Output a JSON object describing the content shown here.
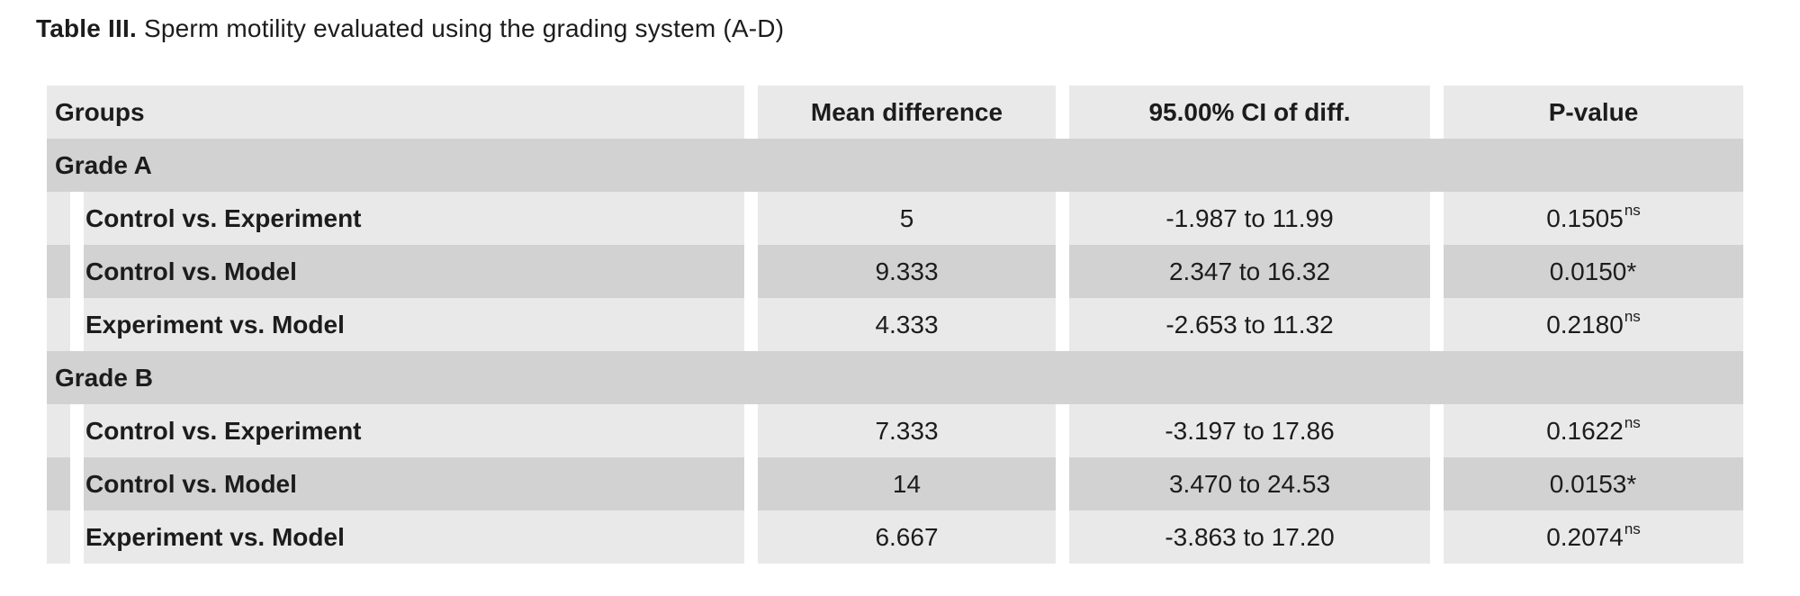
{
  "caption": {
    "label": "Table III.",
    "text": "Sperm motility evaluated using the grading system (A-D)"
  },
  "table": {
    "columns": [
      "Groups",
      "Mean difference",
      "95.00% CI of diff.",
      "P-value"
    ],
    "sections": [
      {
        "header": "Grade A",
        "rows": [
          {
            "group": "Control vs. Experiment",
            "mean_difference": "5",
            "ci": "-1.987 to 11.99",
            "p_value": "0.1505",
            "p_superscript": "ns",
            "shade": "light"
          },
          {
            "group": "Control vs. Model",
            "mean_difference": "9.333",
            "ci": "2.347 to 16.32",
            "p_value": "0.0150*",
            "p_superscript": "",
            "shade": "dark"
          },
          {
            "group": "Experiment vs. Model",
            "mean_difference": "4.333",
            "ci": "-2.653 to 11.32",
            "p_value": "0.2180",
            "p_superscript": "ns",
            "shade": "light"
          }
        ]
      },
      {
        "header": "Grade B",
        "rows": [
          {
            "group": "Control vs. Experiment",
            "mean_difference": "7.333",
            "ci": "-3.197 to 17.86",
            "p_value": "0.1622",
            "p_superscript": "ns",
            "shade": "light"
          },
          {
            "group": "Control vs. Model",
            "mean_difference": "14",
            "ci": "3.470 to 24.53",
            "p_value": "0.0153*",
            "p_superscript": "",
            "shade": "dark"
          },
          {
            "group": "Experiment vs. Model",
            "mean_difference": "6.667",
            "ci": "-3.863 to 17.20",
            "p_value": "0.2074",
            "p_superscript": "ns",
            "shade": "light"
          }
        ]
      }
    ]
  },
  "colors": {
    "background": "#ffffff",
    "light_cell": "#e9e9e9",
    "dark_cell": "#d2d2d2",
    "text": "#1c1c1c"
  }
}
